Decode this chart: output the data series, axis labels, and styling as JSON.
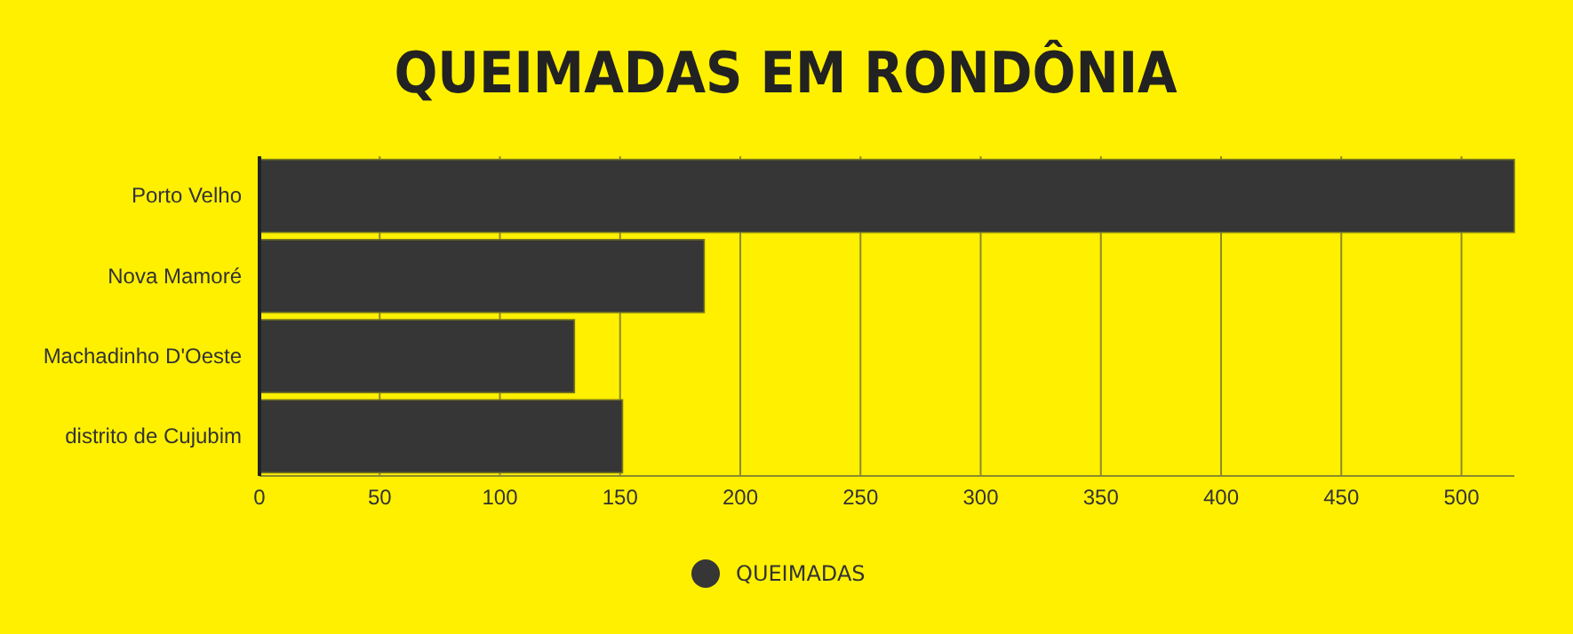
{
  "chart_data": {
    "type": "bar",
    "title": "QUEIMADAS EM RONDÔNIA",
    "orientation": "horizontal",
    "categories": [
      "Porto Velho",
      "Nova Mamoré",
      "Machadinho D'Oeste",
      "distrito de Cujubim"
    ],
    "series": [
      {
        "name": "QUEIMADAS",
        "color": "#363636",
        "values": [
          522,
          185,
          131,
          151
        ]
      }
    ],
    "xlim": [
      0,
      522
    ],
    "xticks": [
      0,
      50,
      100,
      150,
      200,
      250,
      300,
      350,
      400,
      450,
      500
    ],
    "grid": "x",
    "legend": "bottom"
  }
}
